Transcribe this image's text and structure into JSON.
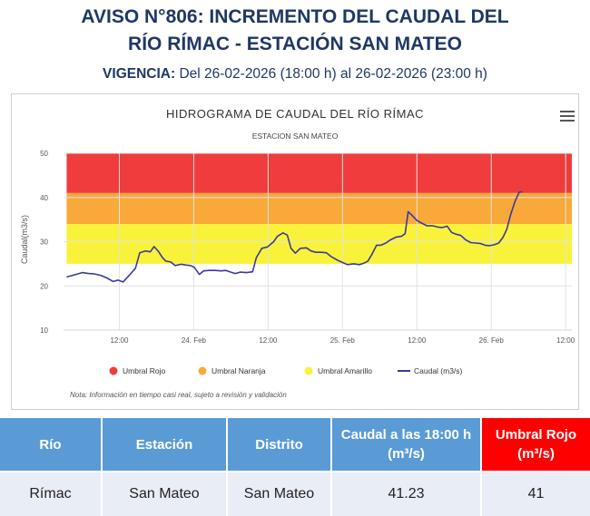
{
  "header": {
    "title_line1": "AVISO N°806: INCREMENTO DEL CAUDAL DEL",
    "title_line2": "RÍO RÍMAC - ESTACIÓN SAN MATEO",
    "vigencia_label": "VIGENCIA:",
    "vigencia_text": " Del 26-02-2026 (18:00 h) al 26-02-2026 (23:00 h)"
  },
  "chart_data": {
    "type": "line",
    "title": "HIDROGRAMA DE CAUDAL DEL RÍO RÍMAC",
    "subtitle": "ESTACION SAN MATEO",
    "ylabel": "Caudal(m3/s)",
    "xlabel": "",
    "ylim": [
      10,
      50
    ],
    "yticks": [
      10,
      20,
      30,
      40,
      50
    ],
    "x_unit": "hours since 23 Feb 00:00",
    "xlim": [
      3,
      85
    ],
    "xticks": [
      {
        "x": 12,
        "label": "12:00"
      },
      {
        "x": 24,
        "label": "24. Feb"
      },
      {
        "x": 36,
        "label": "12:00"
      },
      {
        "x": 48,
        "label": "25. Feb"
      },
      {
        "x": 60,
        "label": "12:00"
      },
      {
        "x": 72,
        "label": "26. Feb"
      },
      {
        "x": 84,
        "label": "12:00"
      }
    ],
    "bands": [
      {
        "name": "Umbral Rojo",
        "from": 41,
        "to": 50,
        "color": "#f03c3c"
      },
      {
        "name": "Umbral Naranja",
        "from": 34,
        "to": 41,
        "color": "#f8a93a"
      },
      {
        "name": "Umbral Amarillo",
        "from": 25,
        "to": 34,
        "color": "#f8f33a"
      }
    ],
    "series": [
      {
        "name": "Caudal (m3/s)",
        "color": "#3a3a9c",
        "points": [
          [
            3.5,
            22
          ],
          [
            4,
            22.2
          ],
          [
            5,
            22.6
          ],
          [
            6,
            23
          ],
          [
            7,
            22.8
          ],
          [
            8,
            22.7
          ],
          [
            9,
            22.4
          ],
          [
            10,
            21.8
          ],
          [
            11,
            21
          ],
          [
            11.8,
            21.3
          ],
          [
            12.6,
            20.9
          ],
          [
            13.6,
            22.4
          ],
          [
            14.6,
            24
          ],
          [
            15.3,
            27.5
          ],
          [
            16.2,
            27.9
          ],
          [
            17,
            27.7
          ],
          [
            17.6,
            28.9
          ],
          [
            18.3,
            27.8
          ],
          [
            19,
            26.3
          ],
          [
            19.5,
            25.6
          ],
          [
            20.3,
            25.4
          ],
          [
            21,
            24.6
          ],
          [
            22,
            24.9
          ],
          [
            22.8,
            24.7
          ],
          [
            23.5,
            24.6
          ],
          [
            24.1,
            24.2
          ],
          [
            24.9,
            22.6
          ],
          [
            25.6,
            23.4
          ],
          [
            26.5,
            23.5
          ],
          [
            27.5,
            23.5
          ],
          [
            28.4,
            23.4
          ],
          [
            29.2,
            23.5
          ],
          [
            30,
            23.1
          ],
          [
            30.7,
            22.8
          ],
          [
            31.5,
            23.1
          ],
          [
            32.5,
            23
          ],
          [
            33.5,
            23.2
          ],
          [
            34.1,
            26.4
          ],
          [
            35,
            28.5
          ],
          [
            35.9,
            28.8
          ],
          [
            36.9,
            30
          ],
          [
            37.5,
            31.2
          ],
          [
            38.4,
            32
          ],
          [
            39.1,
            31.5
          ],
          [
            39.7,
            28.5
          ],
          [
            40.4,
            27.4
          ],
          [
            41.2,
            28.5
          ],
          [
            42.2,
            28.6
          ],
          [
            42.9,
            27.9
          ],
          [
            43.7,
            27.6
          ],
          [
            44.5,
            27.6
          ],
          [
            45.4,
            27.5
          ],
          [
            46.2,
            26.6
          ],
          [
            47.2,
            25.8
          ],
          [
            48,
            25.3
          ],
          [
            48.8,
            24.8
          ],
          [
            49.8,
            25
          ],
          [
            50.7,
            24.8
          ],
          [
            51.4,
            25.1
          ],
          [
            52.1,
            25.6
          ],
          [
            52.7,
            27
          ],
          [
            53.5,
            29.2
          ],
          [
            54.2,
            29.2
          ],
          [
            55,
            29.7
          ],
          [
            55.7,
            30.4
          ],
          [
            56.6,
            31
          ],
          [
            57.5,
            31.2
          ],
          [
            58.1,
            31.8
          ],
          [
            58.6,
            36.8
          ],
          [
            59.2,
            36
          ],
          [
            60,
            34.8
          ],
          [
            60.9,
            34.1
          ],
          [
            61.6,
            33.6
          ],
          [
            62.5,
            33.6
          ],
          [
            63.4,
            33.3
          ],
          [
            64.1,
            33.2
          ],
          [
            64.9,
            33.5
          ],
          [
            65.6,
            32.1
          ],
          [
            66.3,
            31.7
          ],
          [
            67.1,
            31.4
          ],
          [
            67.9,
            30.4
          ],
          [
            68.7,
            29.8
          ],
          [
            69.5,
            29.7
          ],
          [
            70.2,
            29.6
          ],
          [
            71,
            29.2
          ],
          [
            71.7,
            29.1
          ],
          [
            72.5,
            29.3
          ],
          [
            73.2,
            29.7
          ],
          [
            73.9,
            31
          ],
          [
            74.5,
            32.8
          ],
          [
            75.1,
            36
          ],
          [
            75.8,
            39
          ],
          [
            76.5,
            41.2
          ],
          [
            77,
            41.3
          ]
        ]
      }
    ],
    "legend": [
      {
        "label": "Umbral Rojo",
        "color": "#f03c3c",
        "marker": "circle"
      },
      {
        "label": "Umbral Naranja",
        "color": "#f8a93a",
        "marker": "circle"
      },
      {
        "label": "Umbral Amarillo",
        "color": "#f8f33a",
        "marker": "circle"
      },
      {
        "label": "Caudal (m3/s)",
        "color": "#3a3a9c",
        "marker": "line"
      }
    ],
    "legend_position": "bottom-center",
    "note": "Nota: Información en tiempo casi real, sujeto a revisión y validación"
  },
  "table": {
    "headers": [
      "Río",
      "Estación",
      "Distrito",
      "Caudal a las 18:00 h (m³/s)",
      "Umbral Rojo (m³/s)"
    ],
    "rows": [
      [
        "Rímac",
        "San Mateo",
        "San Mateo",
        "41.23",
        "41"
      ]
    ]
  }
}
